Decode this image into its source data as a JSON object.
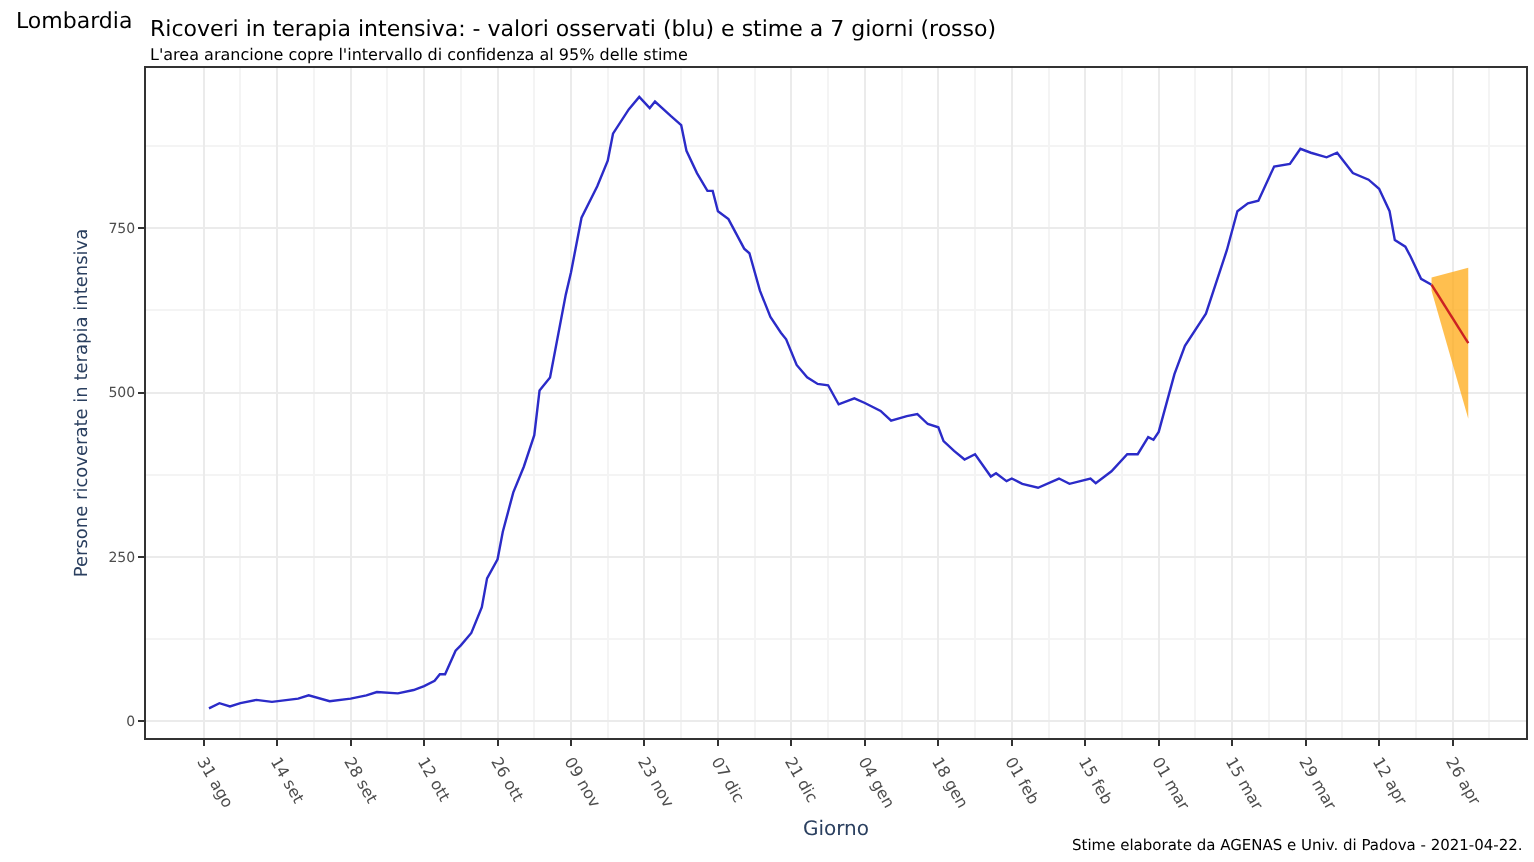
{
  "chart_data": {
    "type": "line",
    "title": "Ricoveri in terapia intensiva: - valori osservati (blu) e stime a 7 giorni (rosso)",
    "subtitle": "L'area arancione copre l'intervallo di confidenza al 95% delle stime",
    "xlabel": "Giorno",
    "ylabel": "Persone ricoverate in terapia intensiva",
    "annotations": [
      "Lombardia",
      "Stime elaborate da AGENAS e Univ. di Padova - 2021-04-22."
    ],
    "series": [
      {
        "color": "#2b2bc8",
        "x": [
          "2020-09-01",
          "2020-09-03",
          "2020-09-05",
          "2020-09-07",
          "2020-09-10",
          "2020-09-13",
          "2020-09-18",
          "2020-09-20",
          "2020-09-24",
          "2020-09-28",
          "2020-10-01",
          "2020-10-03",
          "2020-10-07",
          "2020-10-10",
          "2020-10-12",
          "2020-10-14",
          "2020-10-15",
          "2020-10-16",
          "2020-10-18",
          "2020-10-19",
          "2020-10-21",
          "2020-10-23",
          "2020-10-24",
          "2020-10-26",
          "2020-10-27",
          "2020-10-29",
          "2020-10-31",
          "2020-11-02",
          "2020-11-03",
          "2020-11-05",
          "2020-11-08",
          "2020-11-09",
          "2020-11-11",
          "2020-11-14",
          "2020-11-16",
          "2020-11-17",
          "2020-11-20",
          "2020-11-22",
          "2020-11-24",
          "2020-11-25",
          "2020-11-28",
          "2020-11-30",
          "2020-12-01",
          "2020-12-03",
          "2020-12-05",
          "2020-12-06",
          "2020-12-07",
          "2020-12-09",
          "2020-12-12",
          "2020-12-13",
          "2020-12-15",
          "2020-12-17",
          "2020-12-19",
          "2020-12-20",
          "2020-12-22",
          "2020-12-24",
          "2020-12-26",
          "2020-12-28",
          "2020-12-30",
          "2021-01-02",
          "2021-01-04",
          "2021-01-07",
          "2021-01-09",
          "2021-01-12",
          "2021-01-14",
          "2021-01-16",
          "2021-01-18",
          "2021-01-19",
          "2021-01-21",
          "2021-01-23",
          "2021-01-25",
          "2021-01-28",
          "2021-01-29",
          "2021-01-31",
          "2021-02-01",
          "2021-02-03",
          "2021-02-06",
          "2021-02-10",
          "2021-02-12",
          "2021-02-16",
          "2021-02-17",
          "2021-02-20",
          "2021-02-23",
          "2021-02-25",
          "2021-02-27",
          "2021-02-28",
          "2021-03-01",
          "2021-03-04",
          "2021-03-06",
          "2021-03-10",
          "2021-03-14",
          "2021-03-16",
          "2021-03-18",
          "2021-03-20",
          "2021-03-23",
          "2021-03-26",
          "2021-03-28",
          "2021-03-30",
          "2021-04-02",
          "2021-04-04",
          "2021-04-07",
          "2021-04-10",
          "2021-04-12",
          "2021-04-14",
          "2021-04-15",
          "2021-04-17",
          "2021-04-18",
          "2021-04-20",
          "2021-04-22"
        ],
        "values": [
          19,
          27,
          22,
          27,
          32,
          29,
          34,
          39,
          30,
          34,
          39,
          44,
          42,
          47,
          53,
          61,
          71,
          71,
          107,
          115,
          134,
          173,
          217,
          246,
          288,
          348,
          387,
          435,
          503,
          523,
          649,
          683,
          766,
          814,
          853,
          894,
          931,
          950,
          933,
          943,
          921,
          907,
          868,
          834,
          807,
          807,
          776,
          764,
          719,
          712,
          655,
          615,
          591,
          581,
          542,
          523,
          513,
          511,
          482,
          491,
          484,
          472,
          457,
          464,
          467,
          452,
          447,
          426,
          411,
          398,
          406,
          372,
          377,
          365,
          369,
          361,
          355,
          369,
          361,
          369,
          362,
          380,
          406,
          406,
          432,
          428,
          440,
          528,
          571,
          620,
          717,
          776,
          788,
          792,
          844,
          848,
          871,
          865,
          858,
          865,
          834,
          824,
          810,
          776,
          732,
          722,
          707,
          673,
          664
        ]
      },
      {
        "color": "#cc2222",
        "x": [
          "2021-04-22",
          "2021-04-29"
        ],
        "values": [
          664,
          575
        ],
        "lower": [
          655,
          460
        ],
        "upper": [
          675,
          690
        ]
      }
    ],
    "xlim": [
      "2020-08-20",
      "2021-05-10"
    ],
    "xticks": [
      {
        "value": "2020-08-31",
        "label": "31 ago"
      },
      {
        "value": "2020-09-14",
        "label": "14 set"
      },
      {
        "value": "2020-09-28",
        "label": "28 set"
      },
      {
        "value": "2020-10-12",
        "label": "12 ott"
      },
      {
        "value": "2020-10-26",
        "label": "26 ott"
      },
      {
        "value": "2020-11-09",
        "label": "09 nov"
      },
      {
        "value": "2020-11-23",
        "label": "23 nov"
      },
      {
        "value": "2020-12-07",
        "label": "07 dic"
      },
      {
        "value": "2020-12-21",
        "label": "21 dic"
      },
      {
        "value": "2021-01-04",
        "label": "04 gen"
      },
      {
        "value": "2021-01-18",
        "label": "18 gen"
      },
      {
        "value": "2021-02-01",
        "label": "01 feb"
      },
      {
        "value": "2021-02-15",
        "label": "15 feb"
      },
      {
        "value": "2021-03-01",
        "label": "01 mar"
      },
      {
        "value": "2021-03-15",
        "label": "15 mar"
      },
      {
        "value": "2021-03-29",
        "label": "29 mar"
      },
      {
        "value": "2021-04-12",
        "label": "12 apr"
      },
      {
        "value": "2021-04-26",
        "label": "26 apr"
      }
    ],
    "ylim": [
      -26,
      994
    ],
    "yticks": [
      0,
      250,
      500,
      750
    ],
    "grid": true,
    "marker": "none",
    "line_style": "solid"
  }
}
